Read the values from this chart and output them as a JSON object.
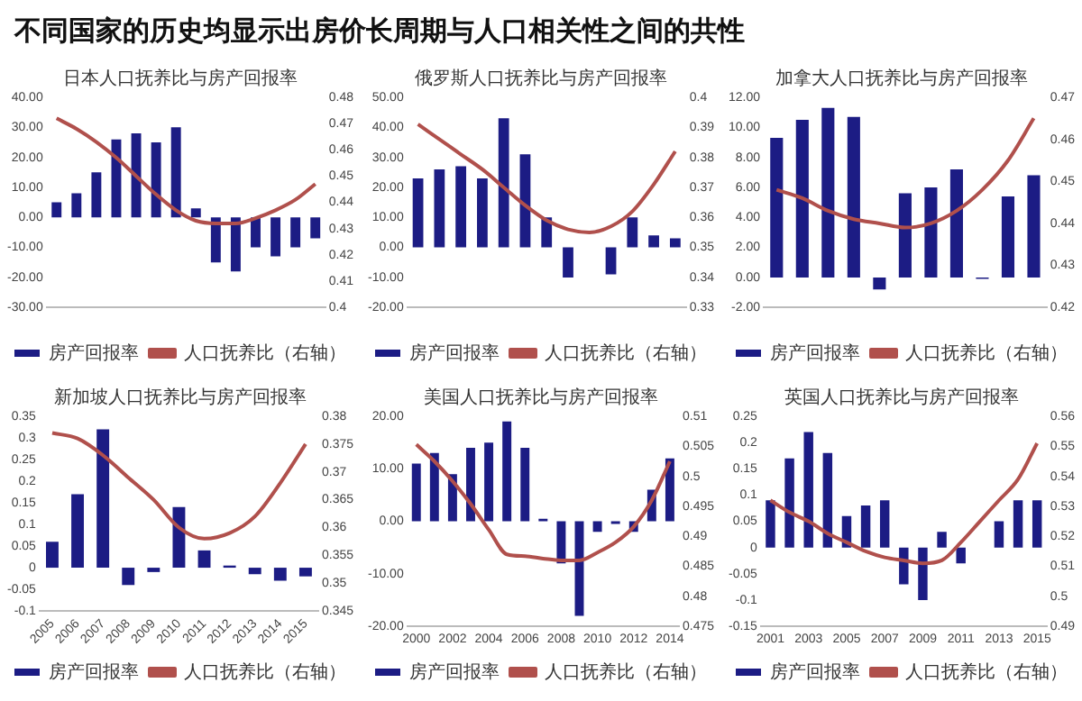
{
  "chart_data": [
    {
      "type": "bar",
      "title": "日本人口抚养比与房产回报率",
      "annotations": [
        "不同国家的历史均显示出房价长周期与人口相关性之间的共性"
      ],
      "legend": "bottom",
      "marker": "none",
      "categories": [
        null,
        null,
        null,
        null,
        null,
        null,
        null,
        null,
        null,
        null,
        null,
        null,
        null,
        null
      ],
      "series": [
        {
          "name": "房产回报率",
          "color": "#1c1c84",
          "values": [
            5,
            8,
            15,
            26,
            28,
            25,
            30,
            3,
            -15,
            -18,
            -10,
            -13,
            -10,
            -7
          ]
        },
        {
          "name": "人口抚养比（右轴）",
          "type": "line",
          "axis": "y2",
          "color": "#b0504c",
          "values": [
            0.472,
            0.468,
            0.463,
            0.457,
            0.45,
            0.443,
            0.437,
            0.433,
            0.432,
            0.432,
            0.434,
            0.437,
            0.441,
            0.447
          ]
        }
      ],
      "ylim": [
        -30,
        40
      ],
      "yticks": [
        {
          "value": -30,
          "label": "-30.00"
        },
        {
          "value": -20,
          "label": "-20.00"
        },
        {
          "value": -10,
          "label": "-10.00"
        },
        {
          "value": 0,
          "label": "0.00"
        },
        {
          "value": 10,
          "label": "10.00"
        },
        {
          "value": 20,
          "label": "20.00"
        },
        {
          "value": 30,
          "label": "30.00"
        },
        {
          "value": 40,
          "label": "40.00"
        }
      ],
      "y2lim": [
        0.4,
        0.48
      ],
      "y2ticks": [
        0.4,
        0.41,
        0.42,
        0.43,
        0.44,
        0.45,
        0.46,
        0.47,
        0.48
      ]
    },
    {
      "type": "bar",
      "title": "俄罗斯人口抚养比与房产回报率",
      "legend": "bottom",
      "marker": "none",
      "categories": [
        null,
        null,
        null,
        null,
        null,
        null,
        null,
        null,
        null,
        null,
        null,
        null,
        null
      ],
      "series": [
        {
          "name": "房产回报率",
          "color": "#1c1c84",
          "values": [
            23,
            26,
            27,
            23,
            43,
            31,
            10,
            -10,
            null,
            -9,
            10,
            4,
            3
          ]
        },
        {
          "name": "人口抚养比（右轴）",
          "type": "line",
          "axis": "y2",
          "color": "#b0504c",
          "values": [
            0.391,
            0.386,
            0.381,
            0.376,
            0.37,
            0.364,
            0.359,
            0.356,
            0.355,
            0.357,
            0.362,
            0.371,
            0.382
          ]
        }
      ],
      "ylim": [
        -20,
        50
      ],
      "yticks": [
        {
          "value": -20,
          "label": "-20.00"
        },
        {
          "value": -10,
          "label": "-10.00"
        },
        {
          "value": 0,
          "label": "0.00"
        },
        {
          "value": 10,
          "label": "10.00"
        },
        {
          "value": 20,
          "label": "20.00"
        },
        {
          "value": 30,
          "label": "30.00"
        },
        {
          "value": 40,
          "label": "40.00"
        },
        {
          "value": 50,
          "label": "50.00"
        }
      ],
      "y2lim": [
        0.33,
        0.4
      ],
      "y2ticks": [
        0.33,
        0.34,
        0.35,
        0.36,
        0.37,
        0.38,
        0.39,
        0.4
      ]
    },
    {
      "type": "bar",
      "title": "加拿大人口抚养比与房产回报率",
      "legend": "bottom",
      "marker": "none",
      "categories": [
        null,
        null,
        null,
        null,
        null,
        null,
        null,
        null,
        null,
        null,
        null
      ],
      "series": [
        {
          "name": "房产回报率",
          "color": "#1c1c84",
          "values": [
            9.3,
            10.5,
            11.3,
            10.7,
            -0.8,
            5.6,
            6,
            7.2,
            -0.1,
            5.4,
            6.8
          ]
        },
        {
          "name": "人口抚养比（右轴）",
          "type": "line",
          "axis": "y2",
          "color": "#b0504c",
          "values": [
            0.448,
            0.446,
            0.443,
            0.441,
            0.44,
            0.439,
            0.44,
            0.443,
            0.448,
            0.455,
            0.465
          ]
        }
      ],
      "ylim": [
        -2,
        12
      ],
      "yticks": [
        {
          "value": -2,
          "label": "-2.00"
        },
        {
          "value": 0,
          "label": "0.00"
        },
        {
          "value": 2,
          "label": "2.00"
        },
        {
          "value": 4,
          "label": "4.00"
        },
        {
          "value": 6,
          "label": "6.00"
        },
        {
          "value": 8,
          "label": "8.00"
        },
        {
          "value": 10,
          "label": "10.00"
        },
        {
          "value": 12,
          "label": "12.00"
        }
      ],
      "y2lim": [
        0.42,
        0.47
      ],
      "y2ticks": [
        0.42,
        0.43,
        0.44,
        0.45,
        0.46,
        0.47
      ]
    },
    {
      "type": "bar",
      "title": "新加坡人口抚养比与房产回报率",
      "legend": "bottom",
      "marker": "none",
      "categories": [
        "2005",
        "2006",
        "2007",
        "2008",
        "2009",
        "2010",
        "2011",
        "2012",
        "2013",
        "2014",
        "2015"
      ],
      "series": [
        {
          "name": "房产回报率",
          "color": "#1c1c84",
          "values": [
            0.06,
            0.17,
            0.32,
            -0.04,
            -0.01,
            0.14,
            0.04,
            0.005,
            -0.015,
            -0.03,
            -0.02
          ]
        },
        {
          "name": "人口抚养比（右轴）",
          "type": "line",
          "axis": "y2",
          "color": "#b0504c",
          "values": [
            0.377,
            0.376,
            0.373,
            0.369,
            0.365,
            0.36,
            0.358,
            0.359,
            0.362,
            0.368,
            0.375
          ]
        }
      ],
      "ylim": [
        -0.1,
        0.35
      ],
      "yticks": [
        -0.1,
        -0.05,
        0,
        0.05,
        0.1,
        0.15,
        0.2,
        0.25,
        0.3,
        0.35
      ],
      "y2lim": [
        0.345,
        0.38
      ],
      "y2ticks": [
        0.345,
        0.35,
        0.355,
        0.36,
        0.365,
        0.37,
        0.375,
        0.38
      ]
    },
    {
      "type": "bar",
      "title": "美国人口抚养比与房产回报率",
      "legend": "bottom",
      "marker": "none",
      "categories": [
        "2000",
        null,
        "2002",
        null,
        "2004",
        null,
        "2006",
        null,
        "2008",
        null,
        "2010",
        null,
        "2012",
        null,
        "2014"
      ],
      "series": [
        {
          "name": "房产回报率",
          "color": "#1c1c84",
          "values": [
            11,
            13,
            9,
            14,
            15,
            19,
            14,
            0.5,
            -8,
            -18,
            -2,
            -0.5,
            -2,
            6,
            12
          ]
        },
        {
          "name": "人口抚养比（右轴）",
          "type": "line",
          "axis": "y2",
          "color": "#b0504c",
          "values": [
            0.5053,
            0.5025,
            0.4992,
            0.4954,
            0.4911,
            0.487,
            0.4867,
            0.4863,
            0.486,
            0.486,
            0.4873,
            0.489,
            0.4916,
            0.496,
            0.5025
          ]
        }
      ],
      "ylim": [
        -20,
        20
      ],
      "yticks": [
        {
          "value": -20,
          "label": "-20.00"
        },
        {
          "value": -10,
          "label": "-10.00"
        },
        {
          "value": 0,
          "label": "0.00"
        },
        {
          "value": 10,
          "label": "10.00"
        },
        {
          "value": 20,
          "label": "20.00"
        }
      ],
      "y2lim": [
        0.475,
        0.51
      ],
      "y2ticks": [
        0.475,
        0.48,
        0.485,
        0.49,
        0.495,
        0.5,
        0.505,
        0.51
      ]
    },
    {
      "type": "bar",
      "title": "英国人口抚养比与房产回报率",
      "legend": "bottom",
      "marker": "none",
      "categories": [
        "2001",
        null,
        "2003",
        null,
        "2005",
        null,
        "2007",
        null,
        "2009",
        null,
        "2011",
        null,
        "2013",
        null,
        "2015"
      ],
      "series": [
        {
          "name": "房产回报率",
          "color": "#1c1c84",
          "values": [
            0.09,
            0.17,
            0.22,
            0.18,
            0.06,
            0.08,
            0.09,
            -0.07,
            -0.1,
            0.03,
            -0.03,
            0,
            0.05,
            0.09,
            0.09
          ]
        },
        {
          "name": "人口抚养比（右轴）",
          "type": "line",
          "axis": "y2",
          "color": "#b0504c",
          "values": [
            0.532,
            0.528,
            0.525,
            0.521,
            0.518,
            0.515,
            0.513,
            0.512,
            0.511,
            0.512,
            0.518,
            0.525,
            0.532,
            0.539,
            0.551
          ]
        }
      ],
      "ylim": [
        -0.15,
        0.25
      ],
      "yticks": [
        -0.15,
        -0.1,
        -0.05,
        0,
        0.05,
        0.1,
        0.15,
        0.2,
        0.25
      ],
      "y2lim": [
        0.49,
        0.56
      ],
      "y2ticks": [
        0.49,
        0.5,
        0.51,
        0.52,
        0.53,
        0.54,
        0.55,
        0.56
      ]
    }
  ]
}
